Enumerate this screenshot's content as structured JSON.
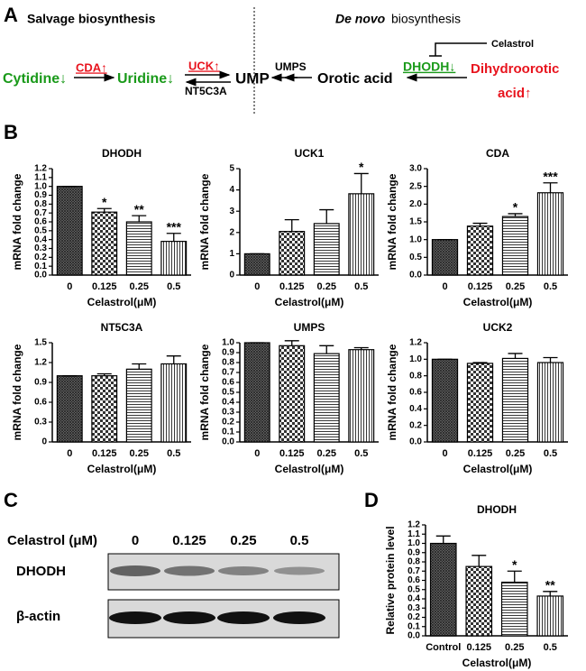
{
  "panels": {
    "a": "A",
    "b": "B",
    "c": "C",
    "d": "D"
  },
  "pathway": {
    "salvage_title": "Salvage biosynthesis",
    "denovo_italic": "De novo",
    "denovo_rest": "biosynthesis",
    "cytidine": "Cytidine↓",
    "cda": "CDA↑",
    "uridine": "Uridine↓",
    "uck": "UCK↑",
    "nt5c3a": "NT5C3A",
    "ump": "UMP",
    "umps": "UMPS",
    "orotic": "Orotic acid",
    "dhodh": "DHODH↓",
    "dihydroorotic": "Dihydroorotic",
    "acid": "acid↑",
    "celastrol": "Celastrol"
  },
  "blot": {
    "treatment": "Celastrol (μM)",
    "lanes": [
      "0",
      "0.125",
      "0.25",
      "0.5"
    ],
    "rows": [
      "DHODH",
      "β-actin"
    ]
  },
  "chart_data": [
    {
      "type": "bar",
      "title": "DHODH",
      "y_label": "mRNA fold change",
      "x_label": "Celastrol(μM)",
      "categories": [
        "0",
        "0.125",
        "0.25",
        "0.5"
      ],
      "values": [
        1.0,
        0.71,
        0.6,
        0.38
      ],
      "errors": [
        0,
        0.04,
        0.07,
        0.09
      ],
      "annotations": [
        null,
        "*",
        "**",
        "***"
      ],
      "ylim": [
        0,
        1.2
      ],
      "yticks": [
        {
          "value": 0,
          "label": "0.0"
        },
        {
          "value": 0.1,
          "label": "0.1"
        },
        {
          "value": 0.2,
          "label": "0.2"
        },
        {
          "value": 0.3,
          "label": "0.3"
        },
        {
          "value": 0.4,
          "label": "0.4"
        },
        {
          "value": 0.5,
          "label": "0.5"
        },
        {
          "value": 0.6,
          "label": "0.6"
        },
        {
          "value": 0.7,
          "label": "0.7"
        },
        {
          "value": 0.8,
          "label": "0.8"
        },
        {
          "value": 0.9,
          "label": "0.9"
        },
        {
          "value": 1.0,
          "label": "1.0"
        },
        {
          "value": 1.1,
          "label": "1.1"
        },
        {
          "value": 1.2,
          "label": "1.2"
        }
      ]
    },
    {
      "type": "bar",
      "title": "UCK1",
      "y_label": "mRNA fold change",
      "x_label": "Celastrol(μM)",
      "categories": [
        "0",
        "0.125",
        "0.25",
        "0.5"
      ],
      "values": [
        1.0,
        2.05,
        2.42,
        3.82
      ],
      "errors": [
        0,
        0.55,
        0.65,
        0.95
      ],
      "annotations": [
        null,
        null,
        null,
        "*"
      ],
      "ylim": [
        0,
        5
      ],
      "yticks": [
        0,
        1,
        2,
        3,
        4,
        5
      ]
    },
    {
      "type": "bar",
      "title": "CDA",
      "y_label": "mRNA fold change",
      "x_label": "Celastrol(μM)",
      "categories": [
        "0",
        "0.125",
        "0.25",
        "0.5"
      ],
      "values": [
        1.0,
        1.38,
        1.65,
        2.32
      ],
      "errors": [
        0,
        0.08,
        0.08,
        0.28
      ],
      "annotations": [
        null,
        null,
        "*",
        "***"
      ],
      "ylim": [
        0,
        3
      ],
      "yticks": [
        {
          "value": 0,
          "label": "0.0"
        },
        0.5,
        {
          "value": 1,
          "label": "1.0"
        },
        1.5,
        {
          "value": 2,
          "label": "2.0"
        },
        2.5,
        {
          "value": 3,
          "label": "3.0"
        }
      ]
    },
    {
      "type": "bar",
      "title": "NT5C3A",
      "y_label": "mRNA fold change",
      "x_label": "Celastrol(μM)",
      "categories": [
        "0",
        "0.125",
        "0.25",
        "0.5"
      ],
      "values": [
        1.0,
        1.0,
        1.1,
        1.18
      ],
      "errors": [
        0,
        0.03,
        0.08,
        0.12
      ],
      "annotations": [
        null,
        null,
        null,
        null
      ],
      "ylim": [
        0,
        1.5
      ],
      "yticks": [
        0,
        0.3,
        0.6,
        0.9,
        1.2,
        1.5
      ]
    },
    {
      "type": "bar",
      "title": "UMPS",
      "y_label": "mRNA fold change",
      "x_label": "Celastrol(μM)",
      "categories": [
        "0",
        "0.125",
        "0.25",
        "0.5"
      ],
      "values": [
        1.0,
        0.97,
        0.89,
        0.93
      ],
      "errors": [
        0,
        0.05,
        0.08,
        0.02
      ],
      "annotations": [
        null,
        null,
        null,
        null
      ],
      "ylim": [
        0,
        1.0
      ],
      "yticks": [
        {
          "value": 0,
          "label": "0.0"
        },
        0.1,
        0.2,
        0.3,
        0.4,
        0.5,
        0.6,
        0.7,
        0.8,
        0.9,
        {
          "value": 1.0,
          "label": "1.0"
        }
      ]
    },
    {
      "type": "bar",
      "title": "UCK2",
      "y_label": "mRNA fold change",
      "x_label": "Celastrol(μM)",
      "categories": [
        "0",
        "0.125",
        "0.25",
        "0.5"
      ],
      "values": [
        1.0,
        0.95,
        1.01,
        0.96
      ],
      "errors": [
        0,
        0.01,
        0.06,
        0.06
      ],
      "annotations": [
        null,
        null,
        null,
        null
      ],
      "ylim": [
        0,
        1.2
      ],
      "yticks": [
        {
          "value": 0,
          "label": "0.0"
        },
        0.2,
        0.4,
        0.6,
        0.8,
        {
          "value": 1.0,
          "label": "1.0"
        },
        1.2
      ]
    },
    {
      "type": "bar",
      "title": "DHODH",
      "y_label": "Relative protein level",
      "x_label": "Celastrol(μM)",
      "categories": [
        "Control",
        "0.125",
        "0.25",
        "0.5"
      ],
      "values": [
        1.0,
        0.75,
        0.58,
        0.43
      ],
      "errors": [
        0.08,
        0.12,
        0.12,
        0.05
      ],
      "annotations": [
        null,
        null,
        "*",
        "**"
      ],
      "ylim": [
        0,
        1.2
      ],
      "yticks": [
        {
          "value": 0,
          "label": "0.0"
        },
        0.1,
        0.2,
        0.3,
        0.4,
        0.5,
        0.6,
        0.7,
        0.8,
        0.9,
        {
          "value": 1.0,
          "label": "1.0"
        },
        1.1,
        1.2
      ]
    }
  ]
}
